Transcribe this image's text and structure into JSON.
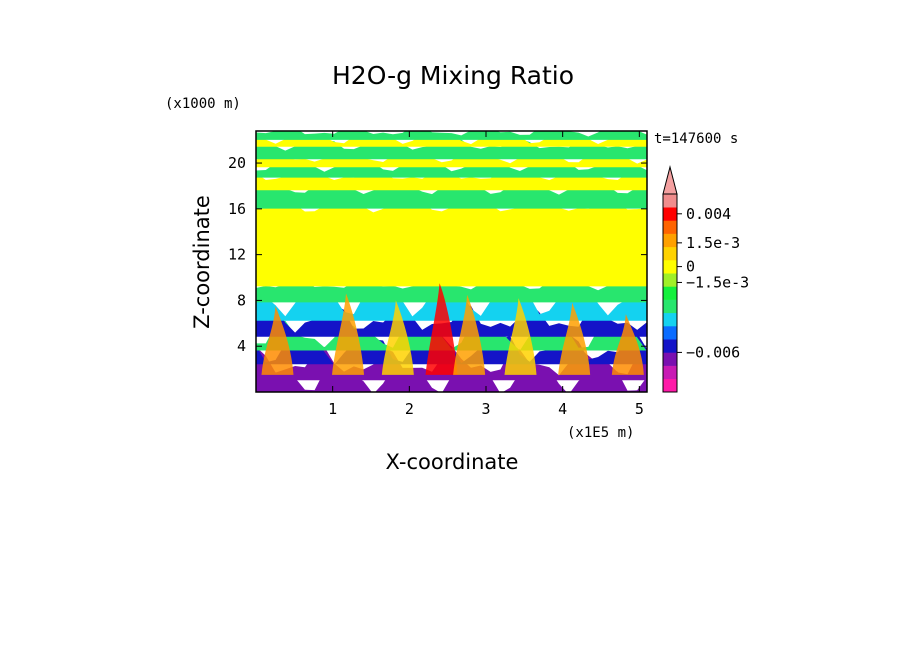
{
  "chart_data": {
    "type": "heatmap",
    "title": "H2O-g Mixing Ratio",
    "xlabel": "X-coordinate",
    "ylabel": "Z-coordinate",
    "x_unit_label": "(x1E5 m)",
    "y_unit_label": "(x1000 m)",
    "time_label": "t=147600 s",
    "xlim": [
      0.0,
      5.1
    ],
    "ylim": [
      0.0,
      22.8
    ],
    "x_ticks": [
      {
        "value": 1,
        "label": "1"
      },
      {
        "value": 2,
        "label": "2"
      },
      {
        "value": 3,
        "label": "3"
      },
      {
        "value": 4,
        "label": "4"
      },
      {
        "value": 5,
        "label": "5"
      }
    ],
    "y_ticks": [
      {
        "value": 4,
        "label": "4"
      },
      {
        "value": 8,
        "label": "8"
      },
      {
        "value": 12,
        "label": "12"
      },
      {
        "value": 16,
        "label": "16"
      },
      {
        "value": 20,
        "label": "20"
      }
    ],
    "colorbar": {
      "colors": [
        "#ff1aa8",
        "#c81ab4",
        "#7a10b0",
        "#1414c8",
        "#0a6cff",
        "#14d2f0",
        "#28e66e",
        "#14f03c",
        "#a0f028",
        "#ffff00",
        "#ffd200",
        "#ffa000",
        "#ff6400",
        "#ff0000",
        "#f08c8c"
      ],
      "extend_top_color": "#f4a0a0",
      "labels": [
        {
          "label": "0.004",
          "level": 13.5
        },
        {
          "label": "1.5e-3",
          "level": 11.3
        },
        {
          "label": "0",
          "level": 9.5
        },
        {
          "label": "−1.5e-3",
          "level": 8.3
        },
        {
          "label": "−0.006",
          "level": 3.0
        }
      ]
    },
    "bands": [
      {
        "z": 0.0,
        "color": "#7a10b0"
      },
      {
        "z": 1.2,
        "color": "#7a10b0"
      },
      {
        "z": 2.6,
        "color": "#1414c8"
      },
      {
        "z": 3.8,
        "color": "#28e66e"
      },
      {
        "z": 5.0,
        "color": "#1414c8"
      },
      {
        "z": 6.4,
        "color": "#14d2f0"
      },
      {
        "z": 8.0,
        "color": "#28e66e"
      },
      {
        "z": 9.4,
        "color": "#ffff00"
      },
      {
        "z": 16.2,
        "color": "#28e66e"
      },
      {
        "z": 17.8,
        "color": "#ffff00"
      },
      {
        "z": 18.9,
        "color": "#28e66e"
      },
      {
        "z": 19.8,
        "color": "#ffff00"
      },
      {
        "z": 20.5,
        "color": "#28e66e"
      },
      {
        "z": 21.6,
        "color": "#ffff00"
      },
      {
        "z": 22.2,
        "color": "#28e66e"
      }
    ],
    "plumes": [
      {
        "x": 0.28,
        "z_top": 7.5,
        "color": "#ff8c00"
      },
      {
        "x": 1.2,
        "z_top": 8.6,
        "color": "#ffa000"
      },
      {
        "x": 1.85,
        "z_top": 8.0,
        "color": "#ffd200"
      },
      {
        "x": 2.42,
        "z_top": 9.5,
        "color": "#ff0000"
      },
      {
        "x": 2.78,
        "z_top": 8.5,
        "color": "#ffa000"
      },
      {
        "x": 3.45,
        "z_top": 8.2,
        "color": "#ffd200"
      },
      {
        "x": 4.15,
        "z_top": 7.8,
        "color": "#ffa000"
      },
      {
        "x": 4.85,
        "z_top": 6.8,
        "color": "#ff8c00"
      }
    ]
  }
}
